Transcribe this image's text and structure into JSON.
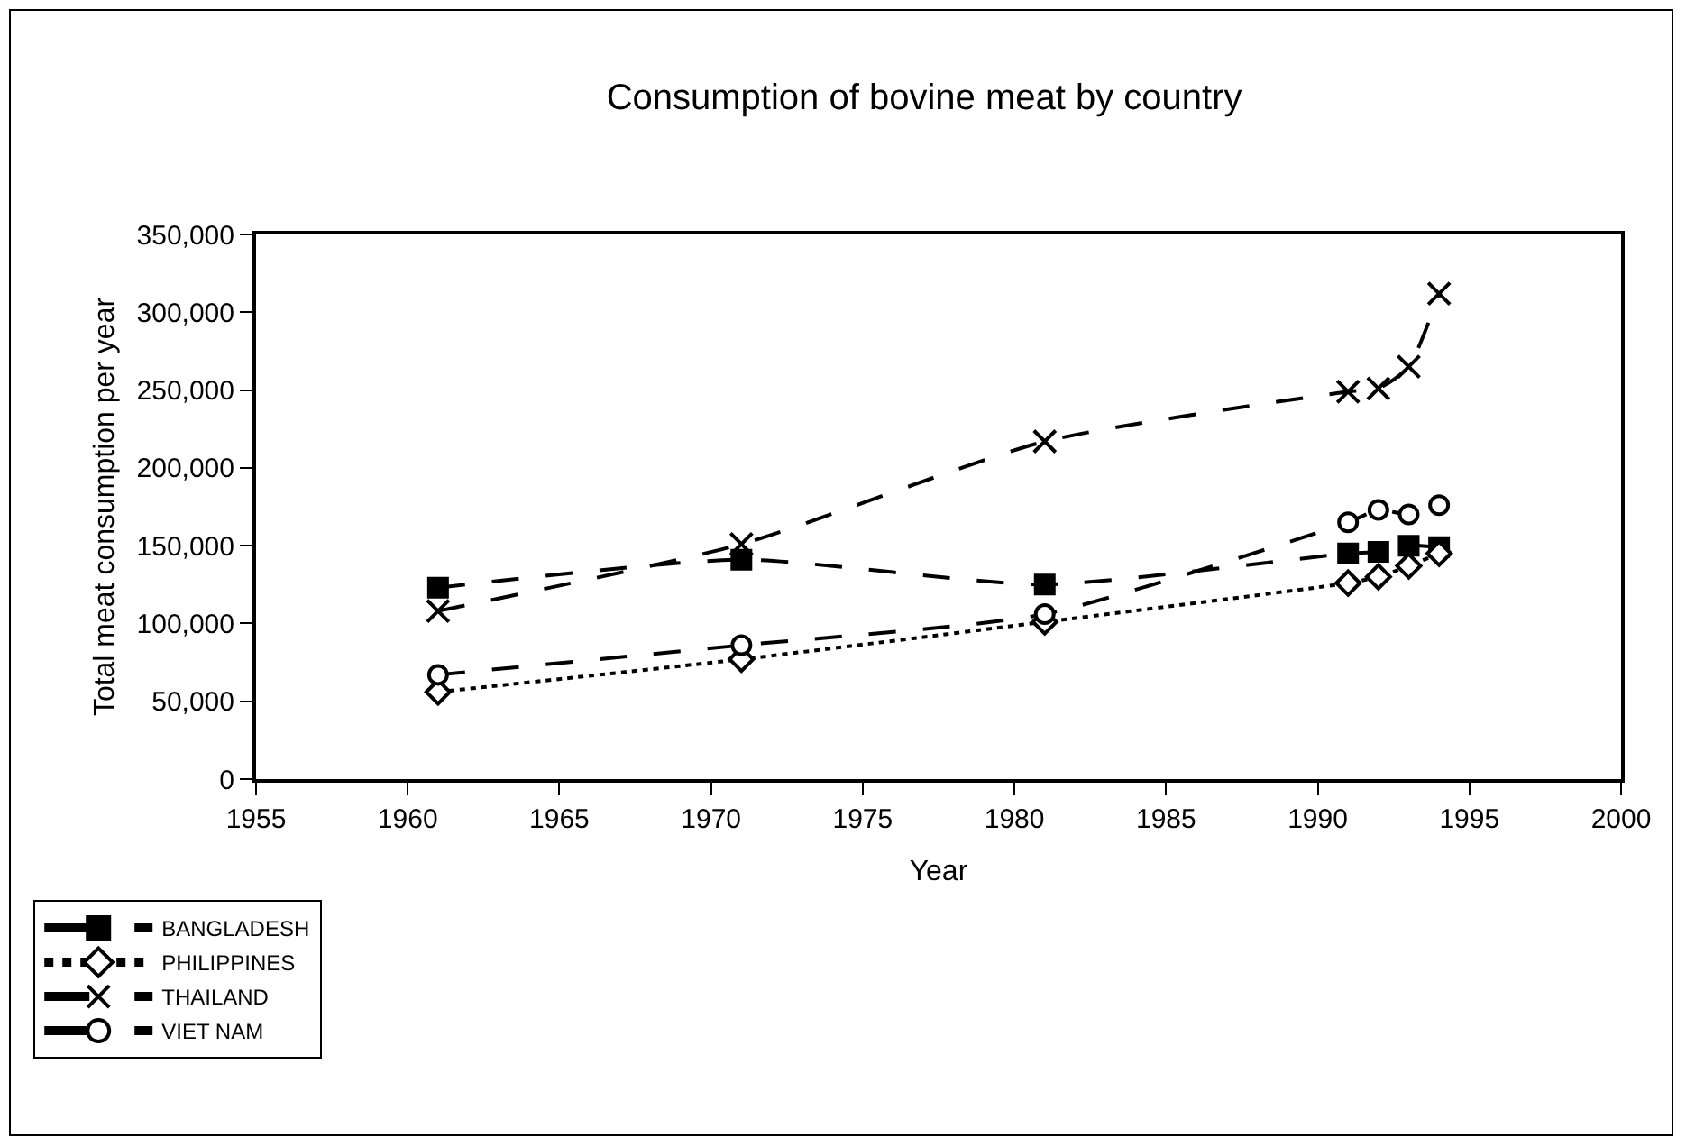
{
  "chart_data": {
    "type": "line",
    "title": "Consumption of bovine meat by country",
    "xlabel": "Year",
    "ylabel": "Total meat consumption per year",
    "x": [
      1961,
      1971,
      1981,
      1991,
      1992,
      1993,
      1994
    ],
    "series": [
      {
        "name": "BANGLADESH",
        "color": "#000000",
        "marker": "square",
        "line_style": "dashed",
        "values": [
          123000,
          141000,
          125000,
          145000,
          146000,
          150000,
          149000
        ]
      },
      {
        "name": "PHILIPPINES",
        "color": "#000000",
        "marker": "diamond",
        "line_style": "dotted",
        "values": [
          56000,
          77000,
          101000,
          126000,
          130000,
          137000,
          145000
        ]
      },
      {
        "name": "THAILAND",
        "color": "#000000",
        "marker": "cross",
        "line_style": "dashed",
        "values": [
          108000,
          151000,
          217000,
          249000,
          251000,
          265000,
          312000
        ]
      },
      {
        "name": "VIET NAM",
        "color": "#000000",
        "marker": "circle",
        "line_style": "dashed",
        "values": [
          67000,
          86000,
          106000,
          165000,
          173000,
          170000,
          176000
        ]
      }
    ],
    "xlim": [
      1955,
      2000
    ],
    "xticks": [
      1955,
      1960,
      1965,
      1970,
      1975,
      1980,
      1985,
      1990,
      1995,
      2000
    ],
    "ylim": [
      0,
      350000
    ],
    "yticks": [
      {
        "value": 0,
        "label": "0"
      },
      {
        "value": 50000,
        "label": "50,000"
      },
      {
        "value": 100000,
        "label": "100,000"
      },
      {
        "value": 150000,
        "label": "150,000"
      },
      {
        "value": 200000,
        "label": "200,000"
      },
      {
        "value": 250000,
        "label": "250,000"
      },
      {
        "value": 300000,
        "label": "300,000"
      },
      {
        "value": 350000,
        "label": "350,000"
      }
    ],
    "grid": false,
    "legend": "bottom left"
  }
}
